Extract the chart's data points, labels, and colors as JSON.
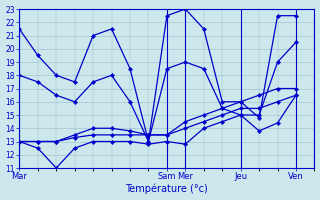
{
  "xlabel": "Température (°c)",
  "background_color": "#cce8ec",
  "line_color": "#0000cc",
  "grid_color": "#99bbcc",
  "ylim": [
    11,
    23
  ],
  "yticks": [
    11,
    12,
    13,
    14,
    15,
    16,
    17,
    18,
    19,
    20,
    21,
    22,
    23
  ],
  "xlim": [
    0,
    96
  ],
  "day_tick_positions": [
    0,
    48,
    54,
    72,
    90
  ],
  "day_tick_labels": [
    "Mar",
    "Sam",
    "Mer",
    "Jeu",
    "Ven"
  ],
  "series": [
    {
      "x": [
        0,
        6,
        12,
        18,
        24,
        30,
        36,
        42,
        48,
        54,
        60,
        66,
        72,
        78,
        84,
        90
      ],
      "y": [
        21.5,
        19.5,
        18,
        17.5,
        21,
        21.5,
        18.5,
        13,
        22.5,
        23,
        21.5,
        16,
        16,
        14.8,
        22.5,
        22.5
      ]
    },
    {
      "x": [
        0,
        6,
        12,
        18,
        24,
        30,
        36,
        42,
        48,
        54,
        60,
        66,
        72,
        78,
        84,
        90
      ],
      "y": [
        13,
        12.5,
        11,
        12.5,
        13,
        13,
        13,
        12.8,
        13,
        12.8,
        14,
        14.5,
        15,
        13.8,
        14.4,
        16.5
      ]
    },
    {
      "x": [
        0,
        6,
        12,
        18,
        24,
        30,
        36,
        42,
        48,
        54,
        60,
        66,
        72,
        78,
        84,
        90
      ],
      "y": [
        13,
        13,
        13,
        13.3,
        13.5,
        13.5,
        13.5,
        13.5,
        13.5,
        14,
        14.5,
        15,
        15.5,
        15.5,
        16,
        16.5
      ]
    },
    {
      "x": [
        0,
        6,
        12,
        18,
        24,
        30,
        36,
        42,
        48,
        54,
        60,
        66,
        72,
        78,
        84,
        90
      ],
      "y": [
        13,
        13,
        13,
        13.5,
        14,
        14,
        13.8,
        13.5,
        13.5,
        14.5,
        15,
        15.5,
        16,
        16.5,
        17,
        17
      ]
    },
    {
      "x": [
        0,
        6,
        12,
        18,
        24,
        30,
        36,
        42,
        48,
        54,
        60,
        66,
        72,
        78,
        84,
        90
      ],
      "y": [
        18,
        17.5,
        16.5,
        16,
        17.5,
        18,
        16,
        13,
        18.5,
        19,
        18.5,
        15.5,
        15,
        15,
        19,
        20.5
      ]
    }
  ]
}
